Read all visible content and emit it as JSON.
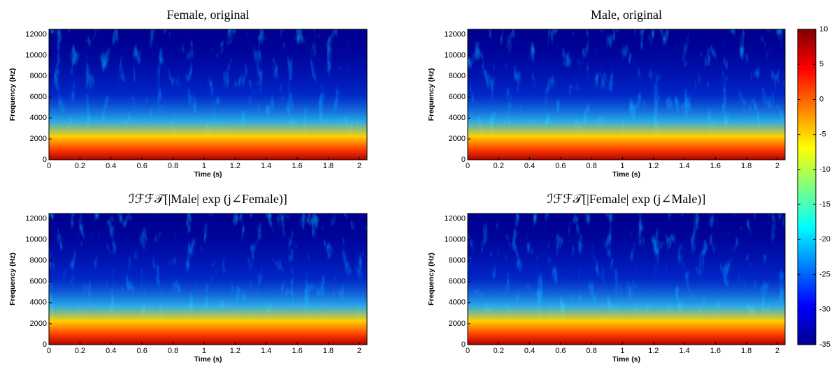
{
  "chart_data": [
    {
      "type": "spectrogram",
      "title": "Female, original",
      "x_label": "Time (s)",
      "y_label": "Frequency (Hz)",
      "xlim": [
        0,
        2.05
      ],
      "xticks": [
        0,
        0.2,
        0.4,
        0.6,
        0.8,
        1,
        1.2,
        1.4,
        1.6,
        1.8,
        2
      ],
      "ylim": [
        0,
        12500
      ],
      "yticks": [
        0,
        2000,
        4000,
        6000,
        8000,
        10000,
        12000
      ],
      "colormap": "jet"
    },
    {
      "type": "spectrogram",
      "title": "Male, original",
      "x_label": "Time (s)",
      "y_label": "Frequency (Hz)",
      "xlim": [
        0,
        2.05
      ],
      "xticks": [
        0,
        0.2,
        0.4,
        0.6,
        0.8,
        1,
        1.2,
        1.4,
        1.6,
        1.8,
        2
      ],
      "ylim": [
        0,
        12500
      ],
      "yticks": [
        0,
        2000,
        4000,
        6000,
        8000,
        10000,
        12000
      ],
      "colormap": "jet"
    },
    {
      "type": "spectrogram",
      "title": "ℐℱℱ𝒯[|Male| exp (j∠Female)]",
      "x_label": "Time (s)",
      "y_label": "Frequency (Hz)",
      "xlim": [
        0,
        2.05
      ],
      "xticks": [
        0,
        0.2,
        0.4,
        0.6,
        0.8,
        1,
        1.2,
        1.4,
        1.6,
        1.8,
        2
      ],
      "ylim": [
        0,
        12500
      ],
      "yticks": [
        0,
        2000,
        4000,
        6000,
        8000,
        10000,
        12000
      ],
      "colormap": "jet"
    },
    {
      "type": "spectrogram",
      "title": "ℐℱℱ𝒯[|Female| exp (j∠Male)]",
      "x_label": "Time (s)",
      "y_label": "Frequency (Hz)",
      "xlim": [
        0,
        2.05
      ],
      "xticks": [
        0,
        0.2,
        0.4,
        0.6,
        0.8,
        1,
        1.2,
        1.4,
        1.6,
        1.8,
        2
      ],
      "ylim": [
        0,
        12500
      ],
      "yticks": [
        0,
        2000,
        4000,
        6000,
        8000,
        10000,
        12000
      ],
      "colormap": "jet"
    },
    {
      "type": "colorbar",
      "ylim": [
        -35,
        10
      ],
      "yticks": [
        10,
        5,
        0,
        -5,
        -10,
        -15,
        -20,
        -25,
        -30,
        -35
      ],
      "colormap": "jet"
    }
  ]
}
